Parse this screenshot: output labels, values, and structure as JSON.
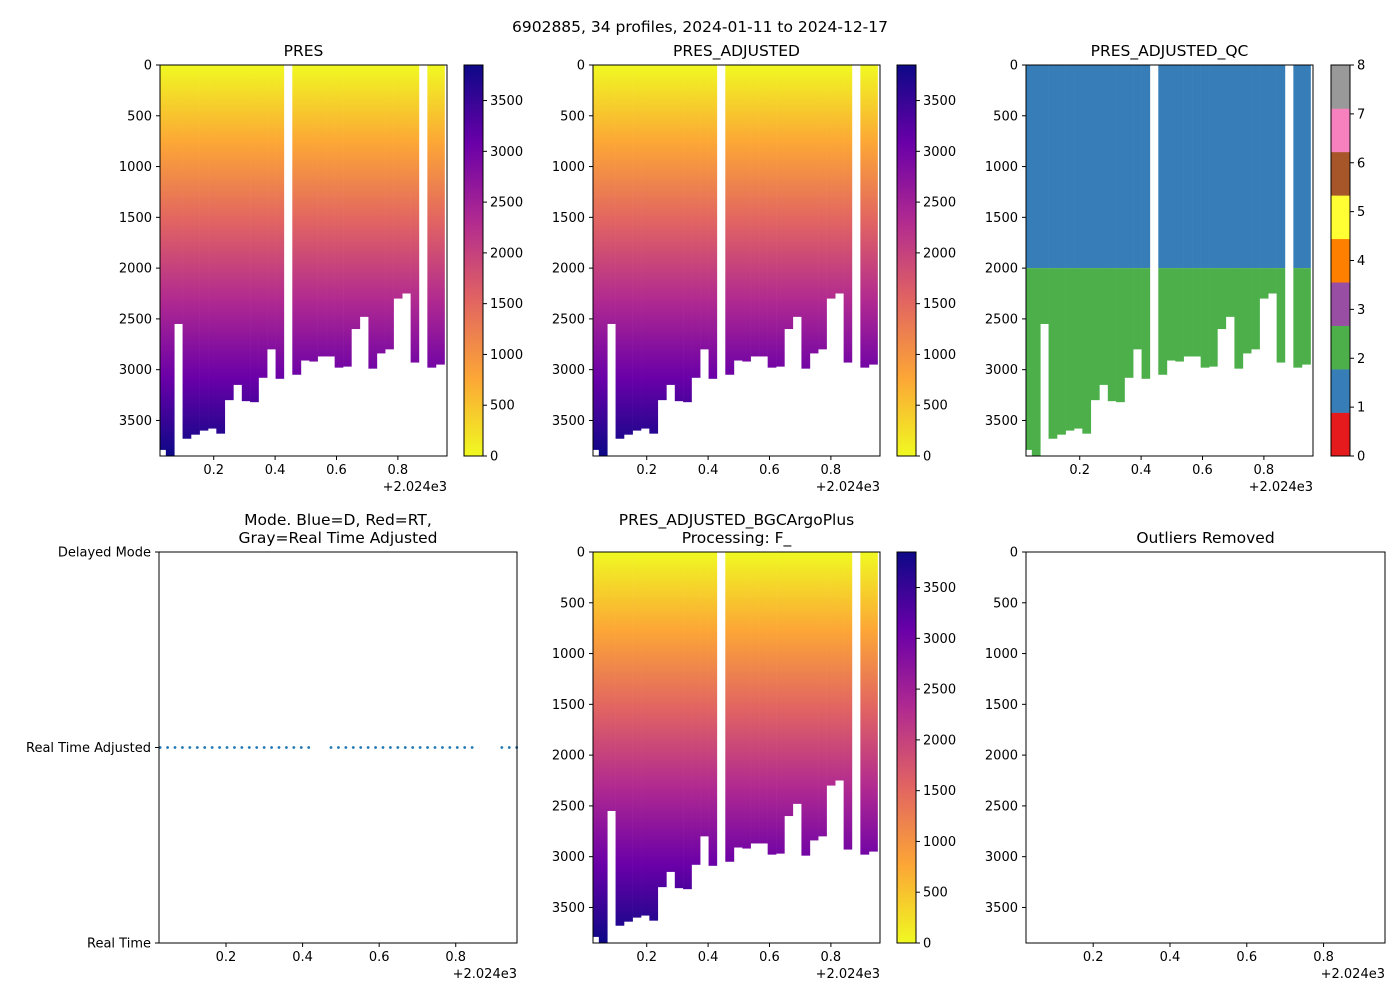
{
  "suptitle": "6902885, 34 profiles, 2024-01-11 to 2024-12-17",
  "x_offset_label": "+2.024e3",
  "x_ticks": [
    0.2,
    0.4,
    0.6,
    0.8
  ],
  "x_tick_labels": [
    "0.2",
    "0.4",
    "0.6",
    "0.8"
  ],
  "y_ticks": [
    0,
    500,
    1000,
    1500,
    2000,
    2500,
    3000,
    3500
  ],
  "y_tick_labels": [
    "0",
    "500",
    "1000",
    "1500",
    "2000",
    "2500",
    "3000",
    "3500"
  ],
  "colorbar_ticks": [
    0,
    500,
    1000,
    1500,
    2000,
    2500,
    3000,
    3500
  ],
  "colorbar_tick_labels": [
    "0",
    "500",
    "1000",
    "1500",
    "2000",
    "2500",
    "3000",
    "3500"
  ],
  "qc_ticks": [
    0,
    1,
    2,
    3,
    4,
    5,
    6,
    7,
    8
  ],
  "qc_tick_labels": [
    "0",
    "1",
    "2",
    "3",
    "4",
    "5",
    "6",
    "7",
    "8"
  ],
  "colors": {
    "plasma_stops": [
      "#f0f921",
      "#fca636",
      "#e16462",
      "#b12a90",
      "#6a00a8",
      "#0d0887"
    ],
    "qc_colors": [
      "#e41a1c",
      "#377eb8",
      "#4daf4a",
      "#984ea3",
      "#ff7f00",
      "#ffff33",
      "#a65628",
      "#f781bf",
      "#999999"
    ],
    "mode_dots": "#1f77b4"
  },
  "chart_data": [
    {
      "id": "pres",
      "type": "heatmap",
      "title": "PRES",
      "xlim": [
        2024.025,
        2024.96
      ],
      "ylim": [
        3850,
        0
      ],
      "clim": [
        0,
        3850
      ],
      "colormap": "plasma_r",
      "profile_dates": [
        2024.03,
        2024.058,
        2024.085,
        2024.112,
        2024.14,
        2024.168,
        2024.195,
        2024.222,
        2024.25,
        2024.278,
        2024.305,
        2024.332,
        2024.36,
        2024.388,
        2024.415,
        2024.442,
        2024.47,
        2024.498,
        2024.525,
        2024.552,
        2024.58,
        2024.608,
        2024.635,
        2024.662,
        2024.69,
        2024.718,
        2024.745,
        2024.772,
        2024.8,
        2024.828,
        2024.855,
        2024.882,
        2024.91,
        2024.938
      ],
      "profile_max_pres": [
        3790,
        3850,
        2550,
        3680,
        3640,
        3600,
        3580,
        3630,
        3300,
        3150,
        3310,
        3320,
        3080,
        2800,
        3090,
        0,
        3050,
        2910,
        2920,
        2870,
        2870,
        2980,
        2970,
        2600,
        2480,
        2990,
        2840,
        2800,
        2300,
        2250,
        2930,
        0,
        2980,
        2950
      ]
    },
    {
      "id": "pres_adjusted",
      "type": "heatmap",
      "title": "PRES_ADJUSTED",
      "xlim": [
        2024.025,
        2024.96
      ],
      "ylim": [
        3850,
        0
      ],
      "clim": [
        0,
        3850
      ],
      "colormap": "plasma_r",
      "same_profiles_as": "pres"
    },
    {
      "id": "pres_adjusted_qc",
      "type": "heatmap",
      "title": "PRES_ADJUSTED_QC",
      "xlim": [
        2024.025,
        2024.96
      ],
      "ylim": [
        3850,
        0
      ],
      "clim": [
        0,
        8
      ],
      "qc_upper_value": 1,
      "qc_lower_value": 2,
      "qc_boundary_pres": 2000,
      "same_profiles_as": "pres"
    },
    {
      "id": "mode",
      "type": "scatter",
      "title_line1": "Mode. Blue=D, Red=RT,",
      "title_line2": "Gray=Real Time Adjusted",
      "xlim": [
        2024.025,
        2024.96
      ],
      "y_categories": [
        "Real Time",
        "Real Time Adjusted",
        "Delayed Mode"
      ],
      "points_y": "Real Time Adjusted",
      "same_profiles_as": "pres"
    },
    {
      "id": "bgc_plus",
      "type": "heatmap",
      "title_line1": "PRES_ADJUSTED_BGCArgoPlus",
      "title_line2": "Processing: F_",
      "xlim": [
        2024.025,
        2024.96
      ],
      "ylim": [
        3850,
        0
      ],
      "clim": [
        0,
        3850
      ],
      "colormap": "plasma_r",
      "same_profiles_as": "pres"
    },
    {
      "id": "outliers",
      "type": "heatmap",
      "title": "Outliers Removed",
      "xlim": [
        2024.025,
        2024.96
      ],
      "ylim": [
        3850,
        0
      ],
      "empty": true
    }
  ]
}
